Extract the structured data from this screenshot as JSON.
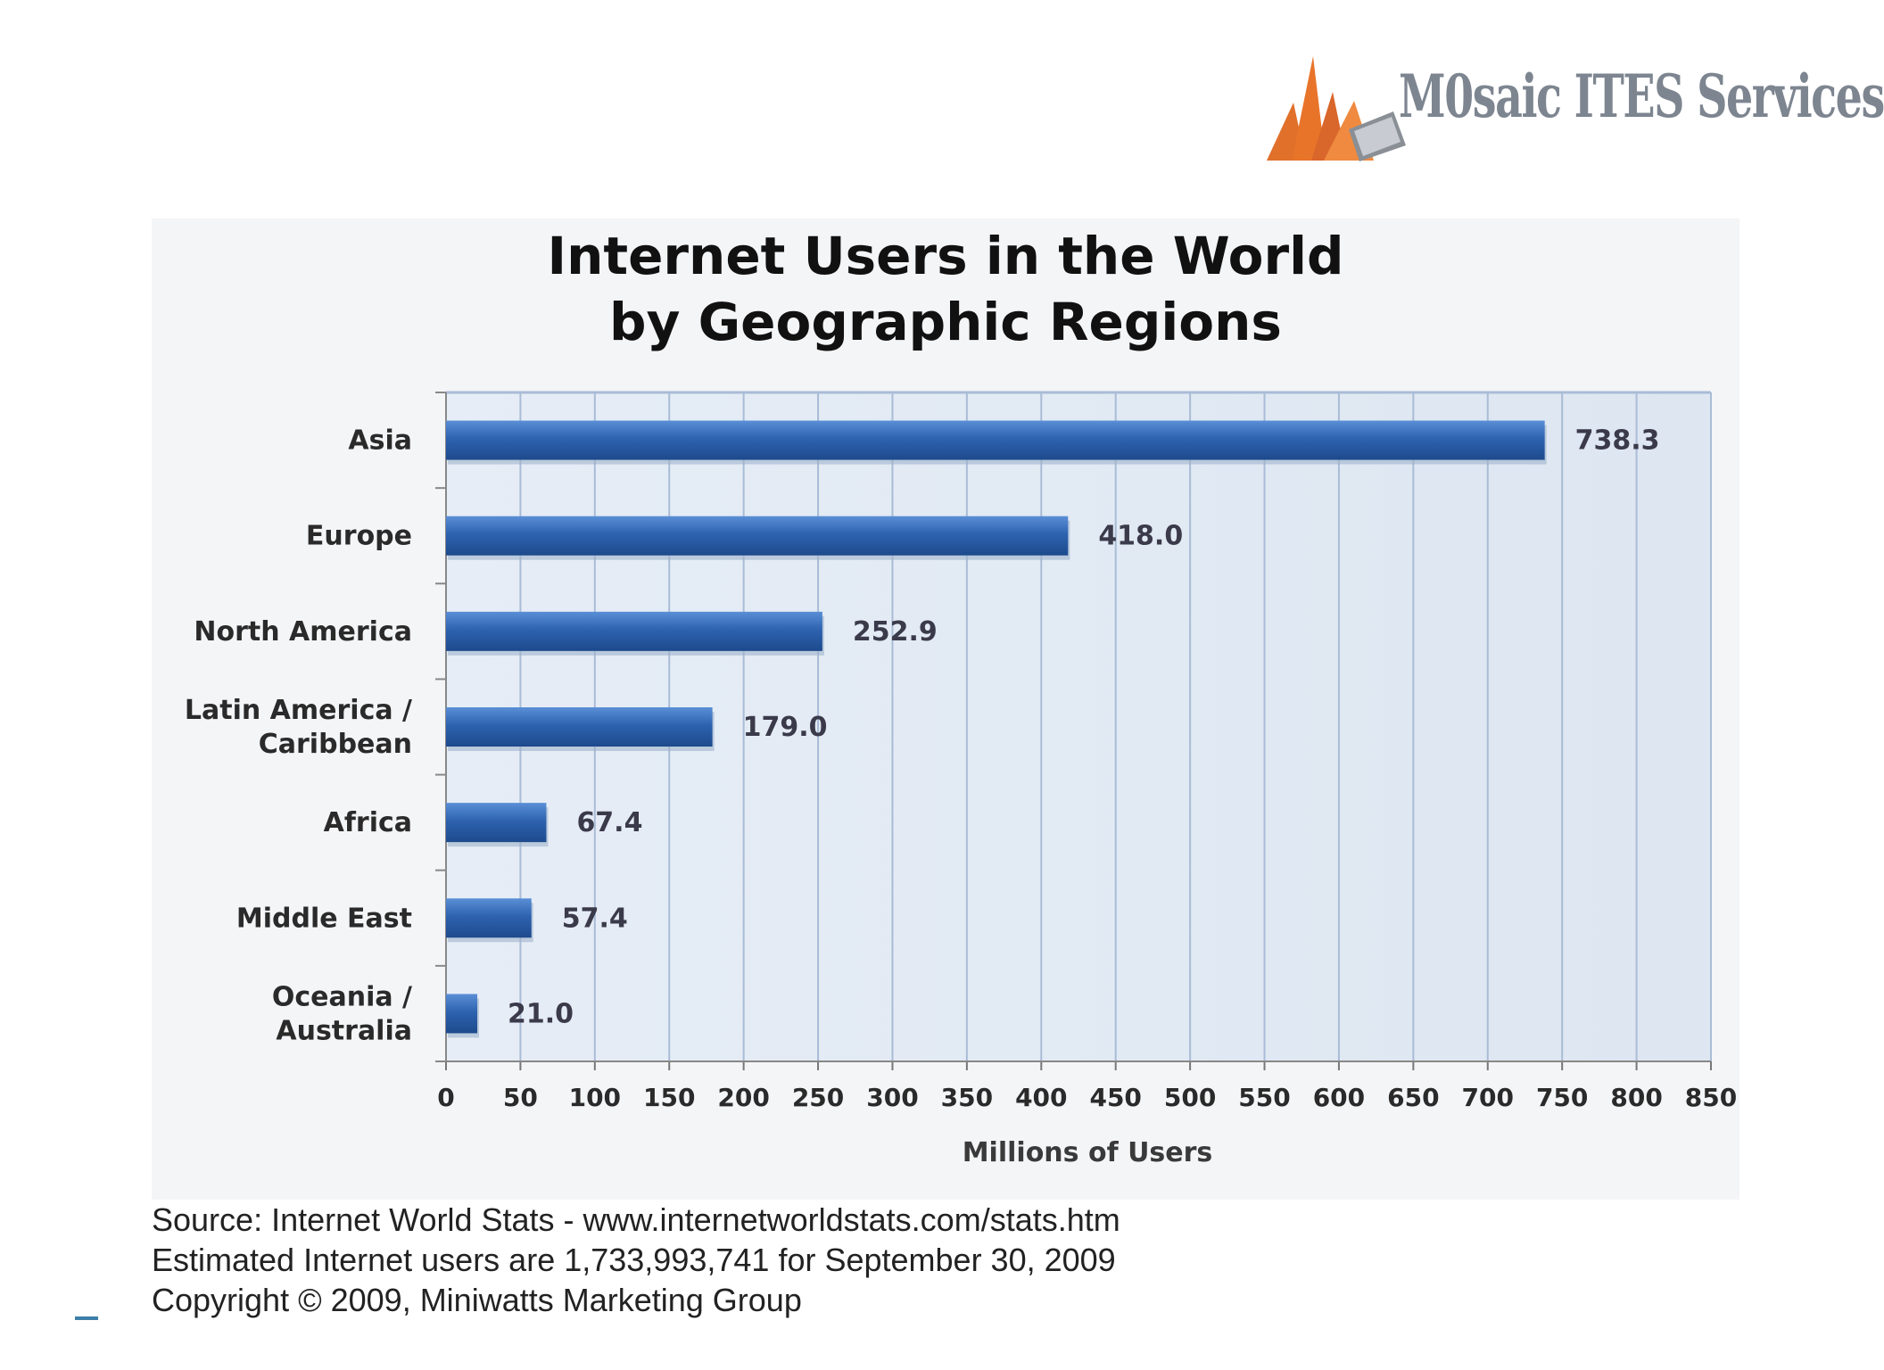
{
  "logo": {
    "text": "M0saic ITES Services"
  },
  "chart_data": {
    "type": "bar",
    "orientation": "horizontal",
    "title": [
      "Internet Users in the World",
      "by Geographic Regions"
    ],
    "categories": [
      "Asia",
      "Europe",
      "North America",
      "Latin America / Caribbean",
      "Africa",
      "Middle East",
      "Oceania / Australia"
    ],
    "category_lines": [
      [
        "Asia"
      ],
      [
        "Europe"
      ],
      [
        "North America"
      ],
      [
        "Latin America /",
        "Caribbean"
      ],
      [
        "Africa"
      ],
      [
        "Middle East"
      ],
      [
        "Oceania  /",
        "Australia"
      ]
    ],
    "values": [
      738.3,
      418.0,
      252.9,
      179.0,
      67.4,
      57.4,
      21.0
    ],
    "value_labels": [
      "738.3",
      "418.0",
      "252.9",
      "179.0",
      "67.4",
      "57.4",
      "21.0"
    ],
    "xlabel": "Millions of Users",
    "ylabel": "",
    "xlim": [
      0,
      850
    ],
    "xticks": [
      0,
      50,
      100,
      150,
      200,
      250,
      300,
      350,
      400,
      450,
      500,
      550,
      600,
      650,
      700,
      750,
      800,
      850
    ],
    "grid": true,
    "colors": {
      "bar": "#2e63b0",
      "bar_light": "#5a8fd6",
      "bar_dark": "#1d4a8c",
      "plot_bg": "#dde6f1",
      "grid": "#a9bcd6"
    }
  },
  "source": {
    "lines": [
      "Source: Internet World Stats - www.internetworldstats.com/stats.htm",
      "Estimated Internet users are 1,733,993,741 for September 30, 2009",
      "Copyright © 2009, Miniwatts Marketing Group"
    ]
  }
}
